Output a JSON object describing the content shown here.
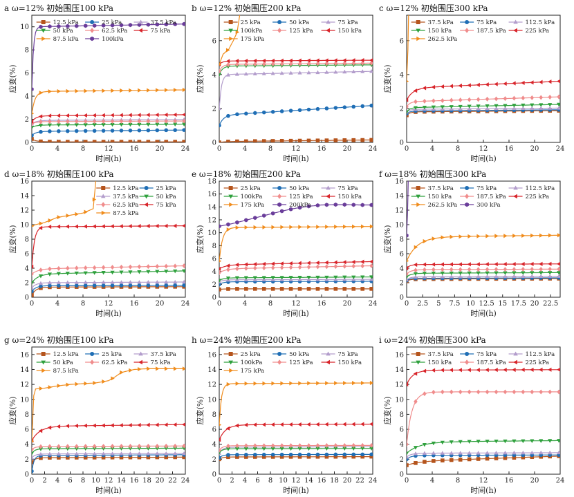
{
  "figure": {
    "colors": {
      "12.5": "#b5541c",
      "25": "#1f6eb5",
      "37.5": "#b39dcc",
      "50": "#2ea03c",
      "62.5": "#f08c8c",
      "75": "#d8242a",
      "87.5": "#f08c1c",
      "100": "#6a3d9a",
      "112.5": "#b39dcc",
      "125": "#f08c8c",
      "150": "#2ea03c",
      "175": "#f08c1c",
      "187.5": "#f08c8c",
      "200": "#6a3d9a",
      "225": "#d8242a",
      "262.5": "#f08c1c",
      "300": "#6a3d9a"
    },
    "markers": {
      "12.5": "square",
      "25": "circle",
      "37.5": "triangle-up",
      "50": "triangle-down",
      "62.5": "diamond",
      "75": "triangle-left",
      "87.5": "triangle-right",
      "100": "hexagon",
      "112.5": "triangle-up",
      "125": "diamond",
      "150": "triangle-down",
      "175": "triangle-right",
      "187.5": "diamond",
      "200": "hexagon",
      "225": "triangle-left",
      "262.5": "triangle-right",
      "300": "hexagon"
    }
  },
  "chart_data": [
    {
      "id": "a",
      "type": "line",
      "title": "a ω=12% 初始围压100 kPa",
      "xlabel": "时间(h)",
      "ylabel": "应变(%)",
      "xlim": [
        0,
        24
      ],
      "ylim": [
        0,
        11
      ],
      "xticks": [
        0,
        4,
        8,
        12,
        16,
        20,
        24
      ],
      "yticks": [
        0,
        2,
        4,
        6,
        8,
        10
      ],
      "legend_cols": 3,
      "series": [
        {
          "name": "12.5 kPa",
          "key": "12.5",
          "start": 0.3,
          "plateau": 0.05,
          "rise_k": 1.5,
          "slope": 0
        },
        {
          "name": "25 kPa",
          "key": "25",
          "start": 0.6,
          "plateau": 0.95,
          "rise_k": 1.5,
          "slope": 0.005
        },
        {
          "name": "37.5 kPa",
          "key": "37.5",
          "start": 1.6,
          "plateau": 1.9,
          "rise_k": 1.5,
          "slope": 0.003
        },
        {
          "name": "50 kPa",
          "key": "50",
          "start": 1.3,
          "plateau": 1.5,
          "rise_k": 1.5,
          "slope": 0.003
        },
        {
          "name": "62.5 kPa",
          "key": "62.5",
          "start": 1.6,
          "plateau": 1.8,
          "rise_k": 1.5,
          "slope": 0.002
        },
        {
          "name": "75 kPa",
          "key": "75",
          "start": 1.8,
          "plateau": 2.3,
          "rise_k": 1.5,
          "slope": 0.004
        },
        {
          "name": "87.5 kPa",
          "key": "87.5",
          "start": 2.5,
          "plateau": 4.4,
          "rise_k": 2.0,
          "slope": 0.006
        },
        {
          "name": "100kPa",
          "key": "100",
          "start": 4.6,
          "plateau": 10.0,
          "rise_k": 4.0,
          "slope": 0.01
        }
      ]
    },
    {
      "id": "b",
      "type": "line",
      "title": "b ω=12% 初始围压200 kPa",
      "xlabel": "时间(h)",
      "ylabel": "应变(%)",
      "xlim": [
        0,
        24
      ],
      "ylim": [
        0,
        7.5
      ],
      "xticks": [
        0,
        4,
        8,
        12,
        16,
        20,
        24
      ],
      "yticks": [
        0,
        2,
        4,
        6
      ],
      "legend_cols": 3,
      "series": [
        {
          "name": "25 kPa",
          "key": "12.5",
          "start": 0.0,
          "plateau": 0.05,
          "rise_k": 1.0,
          "slope": 0.004
        },
        {
          "name": "50 kPa",
          "key": "25",
          "start": 1.0,
          "plateau": 1.6,
          "rise_k": 1.5,
          "slope": 0.024
        },
        {
          "name": "75 kPa",
          "key": "37.5",
          "start": 2.0,
          "plateau": 4.0,
          "rise_k": 3.0,
          "slope": 0.008
        },
        {
          "name": "100kPa",
          "key": "50",
          "start": 4.0,
          "plateau": 4.5,
          "rise_k": 2.0,
          "slope": 0.003
        },
        {
          "name": "125 kPa",
          "key": "62.5",
          "start": 4.2,
          "plateau": 4.6,
          "rise_k": 2.0,
          "slope": 0.003
        },
        {
          "name": "150 kPa",
          "key": "75",
          "start": 4.6,
          "plateau": 4.8,
          "rise_k": 2.0,
          "slope": 0.002
        },
        {
          "name": "175 kPa",
          "key": "87.5",
          "points": [
            [
              0,
              4.6
            ],
            [
              0.6,
              5.2
            ],
            [
              1.5,
              5.5
            ],
            [
              2.2,
              6.0
            ],
            [
              2.8,
              6.5
            ],
            [
              3.2,
              7.5
            ]
          ]
        }
      ]
    },
    {
      "id": "c",
      "type": "line",
      "title": "c ω=12% 初始围压300 kPa",
      "xlabel": "时间(h)",
      "ylabel": "应变(%)",
      "xlim": [
        0,
        24
      ],
      "ylim": [
        0,
        7.5
      ],
      "xticks": [
        0,
        4,
        8,
        12,
        16,
        20,
        24
      ],
      "yticks": [
        0,
        2,
        4,
        6
      ],
      "legend_cols": 3,
      "series": [
        {
          "name": "37.5 kPa",
          "key": "12.5",
          "start": 1.6,
          "plateau": 1.8,
          "rise_k": 2.0,
          "slope": 0.003
        },
        {
          "name": "75 kPa",
          "key": "25",
          "start": 1.7,
          "plateau": 1.85,
          "rise_k": 2.0,
          "slope": 0.003
        },
        {
          "name": "112.5 kPa",
          "key": "37.5",
          "start": 1.8,
          "plateau": 1.95,
          "rise_k": 2.0,
          "slope": 0.003
        },
        {
          "name": "150 kPa",
          "key": "50",
          "start": 1.8,
          "plateau": 2.05,
          "rise_k": 2.0,
          "slope": 0.008
        },
        {
          "name": "187.5 kPa",
          "key": "62.5",
          "start": 2.1,
          "plateau": 2.4,
          "rise_k": 2.0,
          "slope": 0.012
        },
        {
          "name": "225 kPa",
          "key": "75",
          "start": 2.5,
          "plateau": 3.2,
          "rise_k": 1.0,
          "slope": 0.017
        },
        {
          "name": "262.5 kPa",
          "key": "87.5",
          "points": [
            [
              0,
              3.6
            ],
            [
              0.2,
              5.5
            ],
            [
              0.3,
              7.5
            ]
          ]
        }
      ]
    },
    {
      "id": "d",
      "type": "line",
      "title": "d ω=18% 初始围压100 kPa",
      "xlabel": "时间(h)",
      "ylabel": "应变(%)",
      "xlim": [
        0,
        24
      ],
      "ylim": [
        0,
        16
      ],
      "xticks": [
        0,
        4,
        8,
        12,
        16,
        20,
        24
      ],
      "yticks": [
        0,
        2,
        4,
        6,
        8,
        10,
        12,
        14,
        16
      ],
      "legend_cols": 2,
      "legend_x": 0.42,
      "series": [
        {
          "name": "12.5 kPa",
          "key": "12.5",
          "start": 0.3,
          "plateau": 1.4,
          "rise_k": 1.5,
          "slope": 0.002
        },
        {
          "name": "25 kPa",
          "key": "25",
          "start": 0.8,
          "plateau": 1.6,
          "rise_k": 1.5,
          "slope": 0.002
        },
        {
          "name": "37.5 kPa",
          "key": "37.5",
          "start": 1.3,
          "plateau": 2.0,
          "rise_k": 1.5,
          "slope": 0.004
        },
        {
          "name": "50 kPa",
          "key": "50",
          "start": 2.0,
          "plateau": 3.2,
          "rise_k": 1.0,
          "slope": 0.018
        },
        {
          "name": "62.5 kPa",
          "key": "62.5",
          "start": 3.2,
          "plateau": 3.9,
          "rise_k": 1.0,
          "slope": 0.018
        },
        {
          "name": "75 kPa",
          "key": "75",
          "start": 4.2,
          "plateau": 9.7,
          "rise_k": 2.5,
          "slope": 0.006
        },
        {
          "name": "87.5 kPa",
          "key": "87.5",
          "points": [
            [
              0,
              9.8
            ],
            [
              0.6,
              10.0
            ],
            [
              2,
              10.3
            ],
            [
              4,
              11.0
            ],
            [
              6,
              11.3
            ],
            [
              8,
              11.6
            ],
            [
              9.6,
              12.2
            ],
            [
              10,
              16
            ]
          ]
        }
      ]
    },
    {
      "id": "e",
      "type": "line",
      "title": "e ω=18% 初始围压200 kPa",
      "xlabel": "时间(h)",
      "ylabel": "应变(%)",
      "xlim": [
        0,
        24
      ],
      "ylim": [
        0,
        18
      ],
      "xticks": [
        0,
        4,
        8,
        12,
        16,
        20,
        24
      ],
      "yticks": [
        0,
        2,
        4,
        6,
        8,
        10,
        12,
        14,
        16,
        18
      ],
      "legend_cols": 3,
      "series": [
        {
          "name": "25 kPa",
          "key": "12.5",
          "start": 1.2,
          "plateau": 1.3,
          "rise_k": 1.5,
          "slope": 0.0
        },
        {
          "name": "50 kPa",
          "key": "25",
          "start": 2.0,
          "plateau": 2.4,
          "rise_k": 1.5,
          "slope": 0.003
        },
        {
          "name": "75 kPa",
          "key": "37.5",
          "start": 2.4,
          "plateau": 2.7,
          "rise_k": 1.5,
          "slope": 0.003
        },
        {
          "name": "100kPa",
          "key": "50",
          "start": 2.6,
          "plateau": 3.0,
          "rise_k": 1.5,
          "slope": 0.006
        },
        {
          "name": "125 kPa",
          "key": "62.5",
          "start": 3.8,
          "plateau": 4.4,
          "rise_k": 1.0,
          "slope": 0.02
        },
        {
          "name": "150 kPa",
          "key": "75",
          "start": 4.4,
          "plateau": 5.0,
          "rise_k": 1.0,
          "slope": 0.022
        },
        {
          "name": "175 kPa",
          "key": "87.5",
          "start": 5.6,
          "plateau": 10.8,
          "rise_k": 2.0,
          "slope": 0.007
        },
        {
          "name": "200kPa",
          "key": "200",
          "points": [
            [
              0,
              11.0
            ],
            [
              2,
              11.4
            ],
            [
              4,
              11.9
            ],
            [
              6,
              12.4
            ],
            [
              8,
              12.9
            ],
            [
              10,
              13.4
            ],
            [
              12,
              13.8
            ],
            [
              14,
              14.1
            ],
            [
              16,
              14.3
            ],
            [
              18,
              14.35
            ],
            [
              20,
              14.35
            ],
            [
              22,
              14.3
            ],
            [
              24,
              14.3
            ]
          ]
        }
      ]
    },
    {
      "id": "f",
      "type": "line",
      "title": "f ω=18% 初始围压300 kPa",
      "xlabel": "时间(h)",
      "ylabel": "应变(%)",
      "xlim": [
        0,
        24
      ],
      "ylim": [
        0,
        16
      ],
      "xticks": [
        0,
        2.5,
        5,
        7.5,
        10,
        12.5,
        15,
        17.5,
        20,
        22.5
      ],
      "yticks": [
        0,
        2,
        4,
        6,
        8,
        10,
        12,
        14,
        16
      ],
      "legend_cols": 3,
      "series": [
        {
          "name": "37.5 kPa",
          "key": "12.5",
          "start": 2.2,
          "plateau": 2.5,
          "rise_k": 2.0,
          "slope": 0.003
        },
        {
          "name": "75 kPa",
          "key": "25",
          "start": 2.3,
          "plateau": 2.6,
          "rise_k": 2.0,
          "slope": 0.003
        },
        {
          "name": "112.5 kPa",
          "key": "37.5",
          "start": 2.4,
          "plateau": 2.8,
          "rise_k": 2.0,
          "slope": 0.004
        },
        {
          "name": "150 kPa",
          "key": "50",
          "start": 2.8,
          "plateau": 3.3,
          "rise_k": 1.5,
          "slope": 0.004
        },
        {
          "name": "187.5 kPa",
          "key": "62.5",
          "start": 3.2,
          "plateau": 3.8,
          "rise_k": 1.5,
          "slope": 0.003
        },
        {
          "name": "225 kPa",
          "key": "75",
          "start": 4.0,
          "plateau": 4.5,
          "rise_k": 2.0,
          "slope": 0.004
        },
        {
          "name": "262.5 kPa",
          "key": "87.5",
          "start": 5.0,
          "plateau": 8.3,
          "rise_k": 0.6,
          "slope": 0.01
        },
        {
          "name": "300 kPa",
          "key": "300",
          "points": [
            [
              0,
              8.5
            ],
            [
              0.15,
              12
            ],
            [
              0.25,
              16
            ]
          ]
        }
      ]
    },
    {
      "id": "g",
      "type": "line",
      "title": "g ω=24% 初始围压100 kPa",
      "xlabel": "时间(h)",
      "ylabel": "应变(%)",
      "xlim": [
        0,
        24
      ],
      "ylim": [
        0,
        17
      ],
      "xticks": [
        0,
        2,
        4,
        6,
        8,
        10,
        12,
        14,
        16,
        18,
        20,
        22,
        24
      ],
      "yticks": [
        0,
        2,
        4,
        6,
        8,
        10,
        12,
        14,
        16
      ],
      "legend_cols": 3,
      "series": [
        {
          "name": "12.5 kPa",
          "key": "12.5",
          "start": 1.6,
          "plateau": 2.2,
          "rise_k": 2.0,
          "slope": 0.003
        },
        {
          "name": "25 kPa",
          "key": "25",
          "start": 0.4,
          "plateau": 2.5,
          "rise_k": 3.0,
          "slope": 0.004
        },
        {
          "name": "37.5 kPa",
          "key": "37.5",
          "start": 2.2,
          "plateau": 2.7,
          "rise_k": 2.0,
          "slope": 0.003
        },
        {
          "name": "50 kPa",
          "key": "50",
          "start": 2.8,
          "plateau": 3.4,
          "rise_k": 2.0,
          "slope": 0.003
        },
        {
          "name": "62.5 kPa",
          "key": "62.5",
          "start": 3.3,
          "plateau": 3.7,
          "rise_k": 2.0,
          "slope": 0.003
        },
        {
          "name": "75 kPa",
          "key": "75",
          "start": 4.5,
          "plateau": 6.4,
          "rise_k": 0.8,
          "slope": 0.01
        },
        {
          "name": "87.5 kPa",
          "key": "87.5",
          "points": [
            [
              0,
              4.4
            ],
            [
              0.3,
              10.5
            ],
            [
              0.6,
              11.4
            ],
            [
              2,
              11.5
            ],
            [
              4,
              11.8
            ],
            [
              6,
              12.0
            ],
            [
              8,
              12.1
            ],
            [
              10,
              12.2
            ],
            [
              12,
              12.5
            ],
            [
              13,
              13.0
            ],
            [
              14,
              13.6
            ],
            [
              16,
              14.0
            ],
            [
              18,
              14.1
            ],
            [
              20,
              14.1
            ],
            [
              22,
              14.1
            ],
            [
              24,
              14.1
            ]
          ]
        }
      ]
    },
    {
      "id": "h",
      "type": "line",
      "title": "h ω=24% 初始围压200 kPa",
      "xlabel": "时间(h)",
      "ylabel": "应变(%)",
      "xlim": [
        0,
        24
      ],
      "ylim": [
        0,
        17
      ],
      "xticks": [
        0,
        2,
        4,
        6,
        8,
        10,
        12,
        14,
        16,
        18,
        20,
        22,
        24
      ],
      "yticks": [
        0,
        2,
        4,
        6,
        8,
        10,
        12,
        14,
        16
      ],
      "legend_cols": 3,
      "series": [
        {
          "name": "25 kPa",
          "key": "12.5",
          "start": 2.0,
          "plateau": 2.3,
          "rise_k": 2.0,
          "slope": 0.002
        },
        {
          "name": "50 kPa",
          "key": "25",
          "start": 2.2,
          "plateau": 2.6,
          "rise_k": 2.0,
          "slope": 0.002
        },
        {
          "name": "75 kPa",
          "key": "37.5",
          "start": 2.8,
          "plateau": 3.6,
          "rise_k": 2.0,
          "slope": 0.003
        },
        {
          "name": "100kPa",
          "key": "50",
          "start": 2.9,
          "plateau": 3.4,
          "rise_k": 2.0,
          "slope": 0.002
        },
        {
          "name": "125 kPa",
          "key": "62.5",
          "start": 3.2,
          "plateau": 3.8,
          "rise_k": 2.0,
          "slope": 0.002
        },
        {
          "name": "150 kPa",
          "key": "75",
          "start": 4.6,
          "plateau": 6.6,
          "rise_k": 1.0,
          "slope": 0.004
        },
        {
          "name": "175 kPa",
          "key": "87.5",
          "start": 6.6,
          "plateau": 12.1,
          "rise_k": 3.0,
          "slope": 0.004
        }
      ]
    },
    {
      "id": "i",
      "type": "line",
      "title": "i ω=24% 初始围压300 kPa",
      "xlabel": "时间(h)",
      "ylabel": "应变(%)",
      "xlim": [
        0,
        24
      ],
      "ylim": [
        0,
        17
      ],
      "xticks": [
        0,
        4,
        8,
        12,
        16,
        20,
        24
      ],
      "yticks": [
        0,
        2,
        4,
        6,
        8,
        10,
        12,
        14,
        16
      ],
      "legend_cols": 3,
      "series": [
        {
          "name": "37.5 kPa",
          "key": "12.5",
          "start": 1.2,
          "plateau": 1.7,
          "rise_k": 0.5,
          "slope": 0.03
        },
        {
          "name": "75 kPa",
          "key": "25",
          "start": 2.0,
          "plateau": 2.5,
          "rise_k": 1.5,
          "slope": 0.003
        },
        {
          "name": "112.5 kPa",
          "key": "37.5",
          "start": 2.3,
          "plateau": 2.8,
          "rise_k": 1.5,
          "slope": 0.003
        },
        {
          "name": "150 kPa",
          "key": "50",
          "start": 2.8,
          "plateau": 4.3,
          "rise_k": 0.5,
          "slope": 0.008
        },
        {
          "name": "187.5 kPa",
          "key": "62.5",
          "start": 4.0,
          "plateau": 11.0,
          "rise_k": 1.2,
          "slope": 0.0
        },
        {
          "name": "225 kPa",
          "key": "75",
          "start": 12.0,
          "plateau": 13.9,
          "rise_k": 1.0,
          "slope": 0.003
        }
      ]
    }
  ]
}
